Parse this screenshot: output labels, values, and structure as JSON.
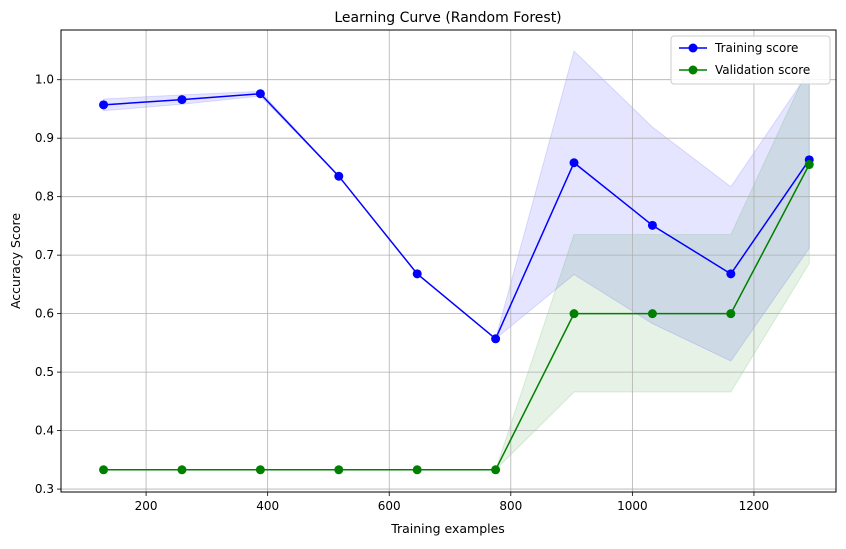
{
  "chart_data": {
    "type": "line",
    "title": "Learning Curve (Random Forest)",
    "xlabel": "Training examples",
    "ylabel": "Accuracy Score",
    "xlim": [
      60,
      1335
    ],
    "ylim": [
      0.295,
      1.085
    ],
    "xticks": [
      200,
      400,
      600,
      800,
      1000,
      1200
    ],
    "yticks": [
      0.3,
      0.4,
      0.5,
      0.6,
      0.7,
      0.8,
      0.9,
      1.0
    ],
    "grid": true,
    "legend_position": "top-right",
    "x": [
      130,
      259,
      388,
      517,
      646,
      775,
      904,
      1033,
      1162,
      1291
    ],
    "series": [
      {
        "name": "Training score",
        "color": "#0000ff",
        "fill_color": "#0000ff",
        "marker": "circle",
        "values": [
          0.957,
          0.966,
          0.976,
          0.835,
          0.668,
          0.557,
          0.858,
          0.751,
          0.668,
          0.863
        ],
        "band_lower": [
          0.947,
          0.958,
          0.972,
          0.835,
          0.668,
          0.557,
          0.667,
          0.583,
          0.519,
          0.712
        ],
        "band_upper": [
          0.967,
          0.974,
          0.98,
          0.835,
          0.668,
          0.557,
          1.049,
          0.919,
          0.817,
          1.014
        ]
      },
      {
        "name": "Validation score",
        "color": "#008000",
        "fill_color": "#008000",
        "marker": "circle",
        "values": [
          0.333,
          0.333,
          0.333,
          0.333,
          0.333,
          0.333,
          0.6,
          0.6,
          0.6,
          0.855
        ],
        "band_lower": [
          0.333,
          0.333,
          0.333,
          0.333,
          0.333,
          0.333,
          0.466,
          0.466,
          0.466,
          0.686
        ],
        "band_upper": [
          0.333,
          0.333,
          0.333,
          0.333,
          0.333,
          0.333,
          0.735,
          0.735,
          0.735,
          1.024
        ]
      }
    ]
  }
}
